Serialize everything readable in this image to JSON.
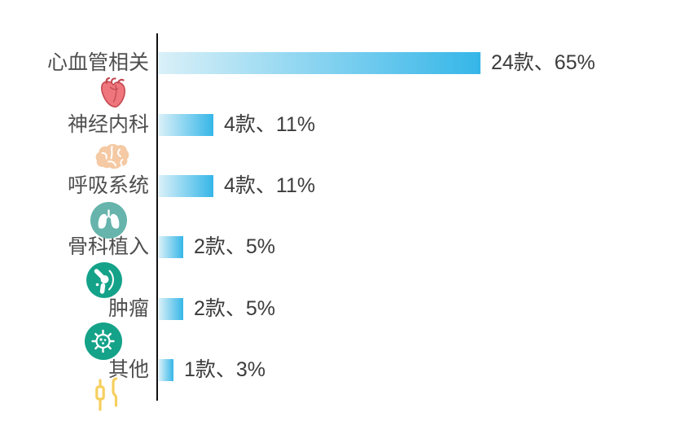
{
  "chart_data": {
    "type": "bar",
    "orientation": "horizontal",
    "title": "",
    "xlabel": "",
    "ylabel": "",
    "grid": false,
    "legend": "none",
    "categories": [
      "心血管相关",
      "神经内科",
      "呼吸系统",
      "骨科植入",
      "肿瘤",
      "其他"
    ],
    "values": [
      24,
      4,
      4,
      2,
      2,
      1
    ],
    "percents": [
      65,
      11,
      11,
      5,
      5,
      3
    ],
    "unit": "款",
    "value_labels": [
      "24款、65%",
      "4款、11%",
      "4款、11%",
      "2款、5%",
      "2款、5%",
      "1款、3%"
    ]
  },
  "rows": [
    {
      "label": "心血管相关",
      "count": 24,
      "percent": 65,
      "value_label": "24款、65%",
      "icon": "heart-icon"
    },
    {
      "label": "神经内科",
      "count": 4,
      "percent": 11,
      "value_label": "4款、11%",
      "icon": "brain-icon"
    },
    {
      "label": "呼吸系统",
      "count": 4,
      "percent": 11,
      "value_label": "4款、11%",
      "icon": "lungs-icon"
    },
    {
      "label": "骨科植入",
      "count": 2,
      "percent": 5,
      "value_label": "2款、5%",
      "icon": "knee-joint-icon"
    },
    {
      "label": "肿瘤",
      "count": 2,
      "percent": 5,
      "value_label": "2款、5%",
      "icon": "tumor-cell-icon"
    },
    {
      "label": "其他",
      "count": 1,
      "percent": 3,
      "value_label": "1款、3%",
      "icon": "candlestick-icon"
    }
  ],
  "colors": {
    "bar_gradient_start": "#d9f0f8",
    "bar_gradient_end": "#35b6e8",
    "axis": "#111111",
    "label_text": "#4f4f4f",
    "value_text": "#3c3c3c",
    "teal_circle": "#14a289",
    "lungs_circle": "#66b4ab",
    "heart_fill": "#ef767c",
    "heart_stroke": "#c34a52",
    "brain_fill": "#f4c9a3",
    "candle_yellow": "#f6cf5f"
  }
}
